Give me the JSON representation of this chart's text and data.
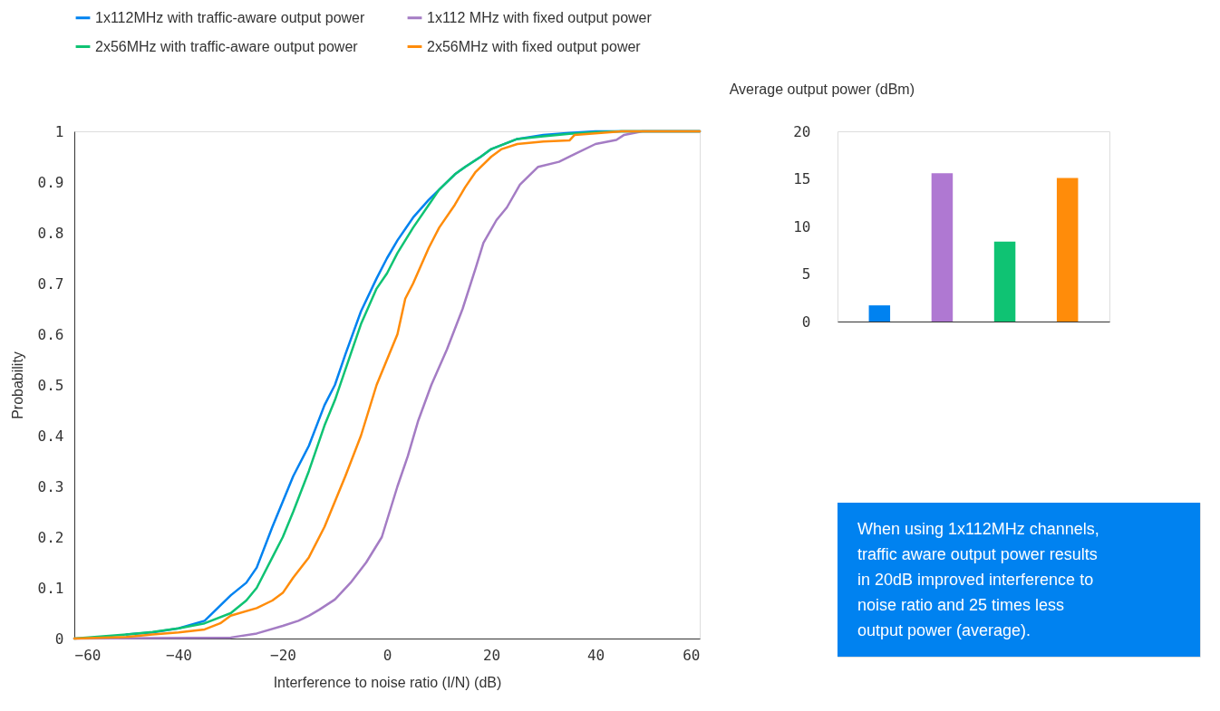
{
  "chart_data": [
    {
      "type": "line",
      "xlabel": "Interference to noise ratio (I/N) (dB)",
      "ylabel": "Probability",
      "xlim": [
        -60,
        60
      ],
      "xticks": [
        -60,
        -40,
        -20,
        0,
        20,
        40,
        60
      ],
      "ylim": [
        0,
        1
      ],
      "yticks": [
        0,
        0.1,
        0.2,
        0.3,
        0.4,
        0.5,
        0.6,
        0.7,
        0.8,
        0.9,
        1
      ],
      "legend": "top",
      "grid": false,
      "marker": "none",
      "line_style": "solid",
      "series": [
        {
          "name": "1x112MHz with traffic-aware output power",
          "color": "#0082f0",
          "x": [
            -50,
            -45,
            -40,
            -35,
            -30,
            -27,
            -25,
            -22,
            -20,
            -18,
            -15,
            -12,
            -10,
            -8,
            -5,
            -2,
            0,
            2,
            5,
            8,
            10,
            13,
            15,
            18,
            20,
            25,
            30,
            35,
            40,
            60
          ],
          "values": [
            0.008,
            0.012,
            0.02,
            0.035,
            0.085,
            0.11,
            0.14,
            0.22,
            0.27,
            0.32,
            0.38,
            0.46,
            0.5,
            0.56,
            0.645,
            0.71,
            0.75,
            0.785,
            0.83,
            0.865,
            0.885,
            0.915,
            0.93,
            0.95,
            0.965,
            0.985,
            0.993,
            0.997,
            1,
            1
          ]
        },
        {
          "name": "1x112 MHz with fixed output power",
          "color": "#a47cc4",
          "x": [
            -60,
            -30,
            -25,
            -20,
            -17,
            -15,
            -13,
            -10,
            -7,
            -4,
            -1,
            2,
            4,
            6,
            8.5,
            11.5,
            14.5,
            17,
            18.5,
            21,
            23,
            25.5,
            29,
            33,
            36,
            40,
            44,
            45.5,
            49,
            60
          ],
          "values": [
            0,
            0.002,
            0.01,
            0.025,
            0.035,
            0.045,
            0.057,
            0.077,
            0.11,
            0.15,
            0.2,
            0.3,
            0.36,
            0.43,
            0.5,
            0.57,
            0.65,
            0.73,
            0.78,
            0.825,
            0.85,
            0.895,
            0.93,
            0.94,
            0.955,
            0.975,
            0.983,
            0.993,
            1,
            1
          ]
        },
        {
          "name": "2x56MHz with traffic-aware output power",
          "color": "#0fc373",
          "x": [
            -60,
            -50,
            -45,
            -40,
            -35,
            -30,
            -27,
            -25,
            -22,
            -20,
            -18,
            -15,
            -12,
            -10,
            -8,
            -5,
            -2,
            0,
            2,
            5,
            8,
            10,
            13,
            15,
            18,
            20,
            25,
            30,
            35,
            40,
            45,
            60
          ],
          "values": [
            0,
            0.008,
            0.013,
            0.02,
            0.03,
            0.05,
            0.075,
            0.1,
            0.16,
            0.2,
            0.25,
            0.33,
            0.42,
            0.47,
            0.53,
            0.62,
            0.69,
            0.72,
            0.76,
            0.81,
            0.855,
            0.885,
            0.915,
            0.93,
            0.95,
            0.965,
            0.985,
            0.99,
            0.995,
            0.998,
            1,
            1
          ]
        },
        {
          "name": "2x56MHz with fixed output power",
          "color": "#ff8c0a",
          "x": [
            -60,
            -50,
            -45,
            -40,
            -35,
            -32,
            -30,
            -25,
            -22,
            -20,
            -18,
            -15,
            -12,
            -10,
            -8,
            -5,
            -2,
            0,
            2,
            3.5,
            5,
            8,
            10,
            13,
            15,
            17,
            20,
            22,
            25,
            30,
            35,
            36,
            45,
            60
          ],
          "values": [
            0,
            0.003,
            0.008,
            0.012,
            0.018,
            0.03,
            0.045,
            0.06,
            0.075,
            0.09,
            0.12,
            0.16,
            0.22,
            0.27,
            0.32,
            0.4,
            0.5,
            0.55,
            0.6,
            0.67,
            0.7,
            0.77,
            0.81,
            0.855,
            0.89,
            0.92,
            0.95,
            0.965,
            0.975,
            0.98,
            0.982,
            0.993,
            1,
            1
          ]
        }
      ]
    },
    {
      "type": "bar",
      "title": "Average output power (dBm)",
      "categories": [
        null,
        null,
        null,
        null
      ],
      "values": [
        1.7,
        15.6,
        8.4,
        15.1
      ],
      "colors": [
        "#0082f0",
        "#af78d2",
        "#0fc373",
        "#ff8c0a"
      ],
      "ylim": [
        0,
        20
      ],
      "yticks": [
        0,
        5,
        10,
        15,
        20
      ],
      "tick_labels": "y",
      "grid": false
    },
    {
      "type": "other",
      "annotations": [
        "When using 1x112MHz channels, traffic aware output power results in 20dB improved interference to noise ratio and 25 times less output power (average)."
      ]
    }
  ]
}
